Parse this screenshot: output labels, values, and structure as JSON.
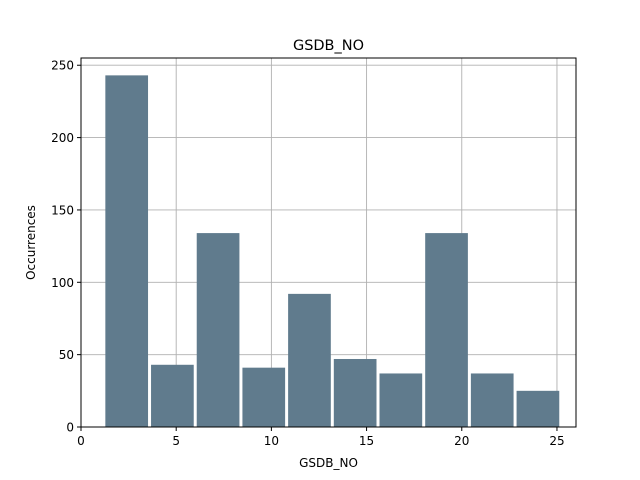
{
  "chart_data": {
    "type": "bar",
    "title": "GSDB_NO",
    "xlabel": "GSDB_NO",
    "ylabel": "Occurrences",
    "xlim": [
      0,
      26
    ],
    "ylim": [
      0,
      255
    ],
    "xticks": [
      0,
      5,
      10,
      15,
      20,
      25
    ],
    "yticks": [
      0,
      50,
      100,
      150,
      200,
      250
    ],
    "grid": true,
    "bar_color": "#607b8d",
    "bins": [
      {
        "x0": 1.2,
        "x1": 3.6,
        "value": 243
      },
      {
        "x0": 3.6,
        "x1": 6.0,
        "value": 43
      },
      {
        "x0": 6.0,
        "x1": 8.4,
        "value": 134
      },
      {
        "x0": 8.4,
        "x1": 10.8,
        "value": 41
      },
      {
        "x0": 10.8,
        "x1": 13.2,
        "value": 92
      },
      {
        "x0": 13.2,
        "x1": 15.6,
        "value": 47
      },
      {
        "x0": 15.6,
        "x1": 18.0,
        "value": 37
      },
      {
        "x0": 18.0,
        "x1": 20.4,
        "value": 134
      },
      {
        "x0": 20.4,
        "x1": 22.8,
        "value": 37
      },
      {
        "x0": 22.8,
        "x1": 25.2,
        "value": 25
      }
    ]
  }
}
